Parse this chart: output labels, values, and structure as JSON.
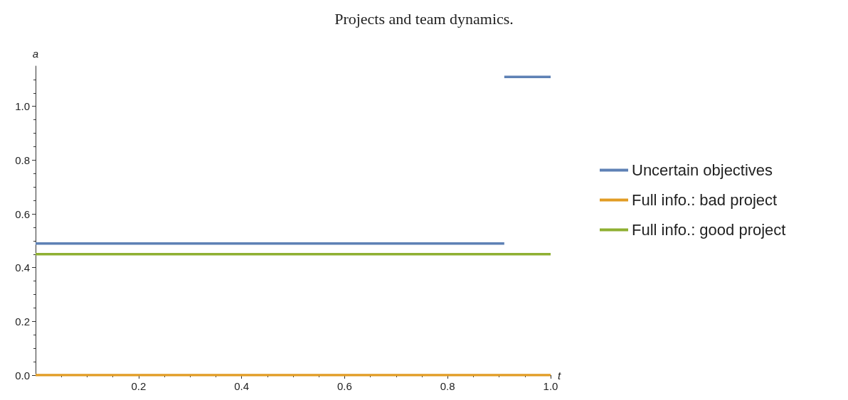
{
  "chart_data": {
    "type": "line",
    "title": "Projects and team dynamics.",
    "xlabel": "t",
    "ylabel": "a",
    "series": [
      {
        "name": "Uncertain objectives",
        "color": "#5e81b5",
        "x": [
          0,
          0.91
        ],
        "values": [
          0.49,
          0.49
        ]
      },
      {
        "color": "#5e81b5",
        "x": [
          0.91,
          1
        ],
        "values": [
          1.11,
          1.11
        ]
      },
      {
        "name": "Full info.: bad project",
        "color": "#e19c24",
        "x": [
          0,
          1
        ],
        "values": [
          0,
          0
        ]
      },
      {
        "name": "Full info.: good project",
        "color": "#8fb032",
        "x": [
          0,
          1
        ],
        "values": [
          0.45,
          0.45
        ]
      }
    ],
    "xlim": [
      0,
      1
    ],
    "xticks": [
      0.2,
      0.4,
      0.6,
      0.8,
      {
        "value": 1,
        "label": "1.0"
      }
    ],
    "ylim": [
      0,
      1.15
    ],
    "yticks": [
      {
        "value": 0,
        "label": "0.0"
      },
      0.2,
      0.4,
      0.6,
      0.8,
      {
        "value": 1,
        "label": "1.0"
      }
    ],
    "grid": false,
    "legend": "right",
    "marker": "none",
    "line_style": "solid"
  }
}
